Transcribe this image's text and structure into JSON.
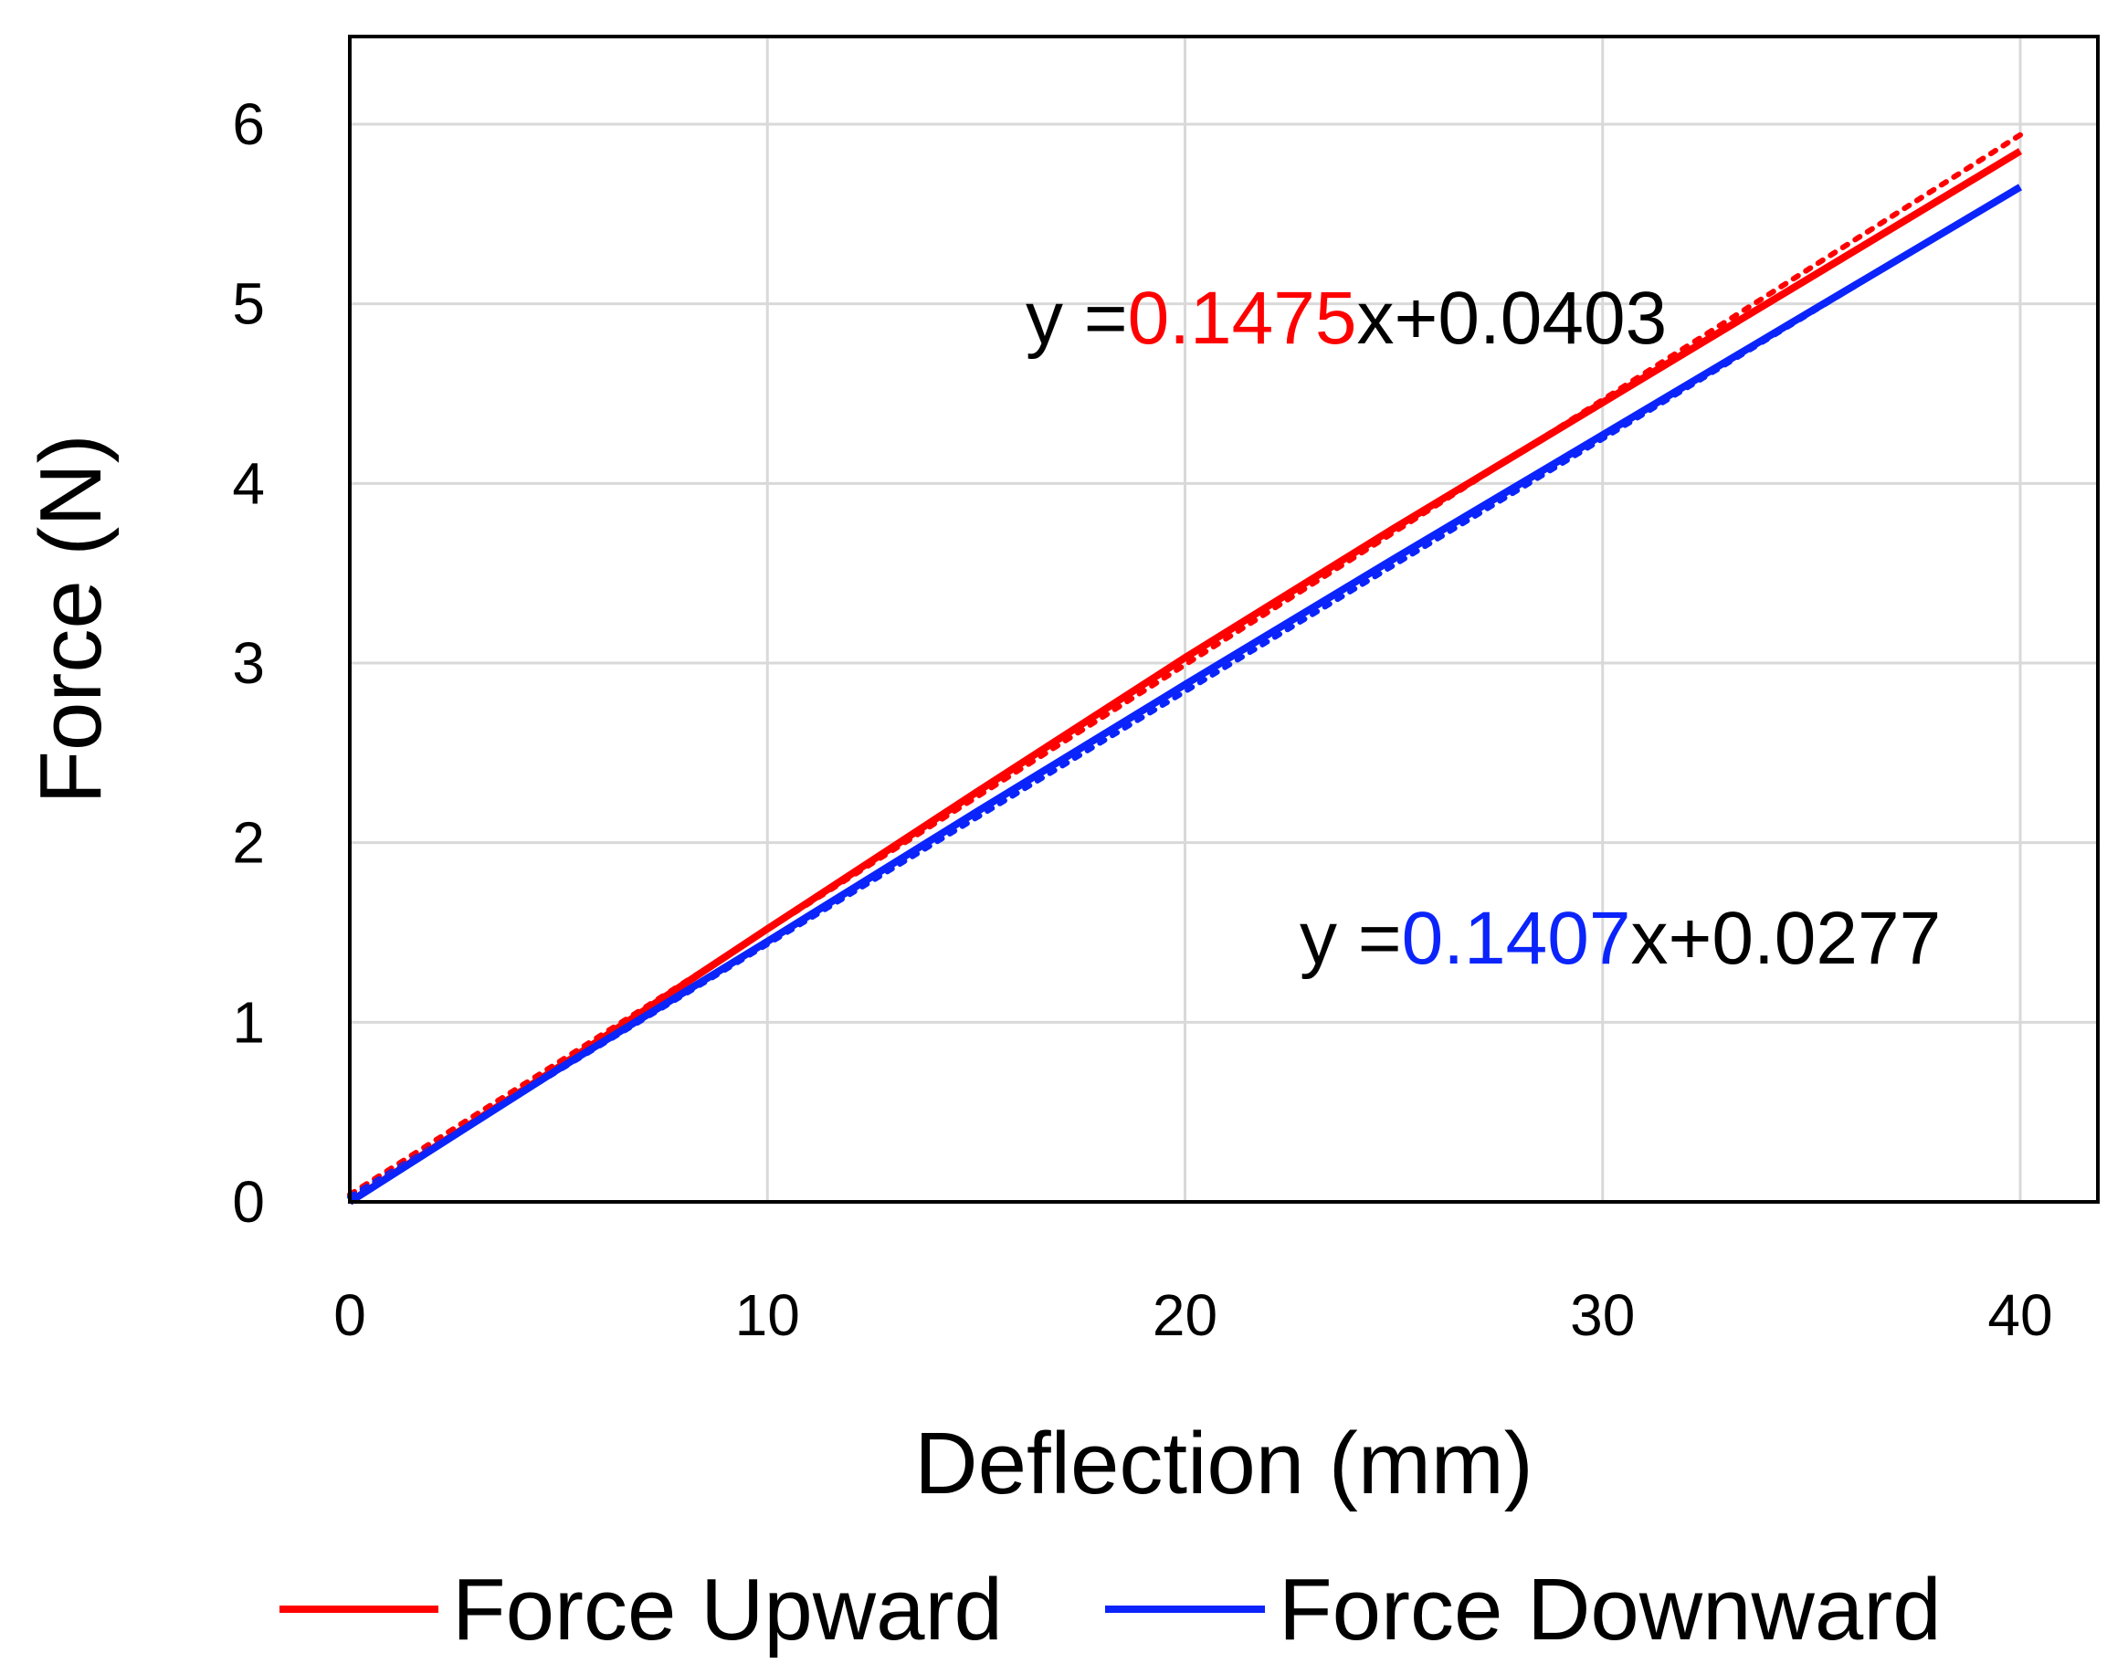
{
  "chart_data": {
    "type": "line",
    "xlabel": "Deflection (mm)",
    "ylabel": "Force (N)",
    "xlim": [
      0,
      40
    ],
    "ylim": [
      0,
      6
    ],
    "xticks": [
      "0",
      "10",
      "20",
      "30",
      "40"
    ],
    "yticks": [
      "0",
      "1",
      "2",
      "3",
      "4",
      "5",
      "6"
    ],
    "grid": true,
    "legend_position": "bottom",
    "series": [
      {
        "name": "Force Upward",
        "color": "#ff0000",
        "x": [
          0,
          5,
          10,
          15,
          20,
          25,
          30,
          35,
          40
        ],
        "y": [
          0,
          0.75,
          1.52,
          2.28,
          3.03,
          3.75,
          4.45,
          5.15,
          5.85
        ]
      },
      {
        "name": "Force Downward",
        "color": "#0b24fb",
        "x": [
          0,
          5,
          10,
          15,
          20,
          25,
          30,
          35,
          40
        ],
        "y": [
          0,
          0.74,
          1.45,
          2.17,
          2.88,
          3.58,
          4.27,
          4.96,
          5.65
        ]
      }
    ],
    "trendlines": [
      {
        "series": "Force Upward",
        "color": "#ff0000",
        "slope": 0.1475,
        "intercept": 0.0403,
        "style": "dotted"
      },
      {
        "series": "Force Downward",
        "color": "#0b24fb",
        "slope": 0.1407,
        "intercept": 0.0277,
        "style": "dotted"
      }
    ],
    "annotations": [
      {
        "prefix": "y =",
        "coef": "0.1475",
        "suffix": "x+0.0403",
        "coef_color": "#ff0000"
      },
      {
        "prefix": "y =",
        "coef": "0.1407",
        "suffix": "x+0.0277",
        "coef_color": "#0b24fb"
      }
    ]
  }
}
